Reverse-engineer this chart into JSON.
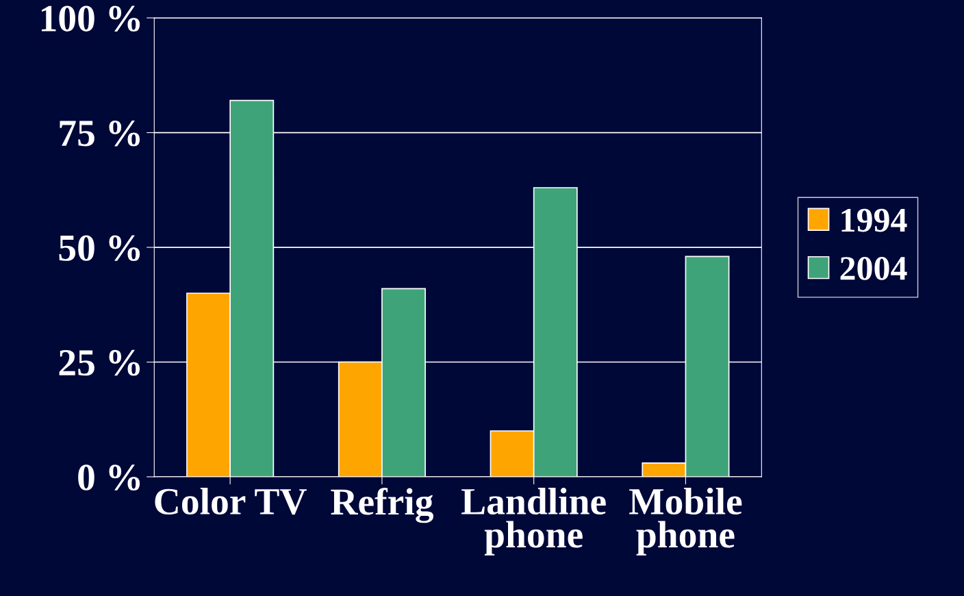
{
  "chart_data": {
    "type": "bar",
    "categories": [
      "Color TV",
      "Refrig",
      "Landline\nphone",
      "Mobile\nphone"
    ],
    "series": [
      {
        "name": "1994",
        "color": "#ffa500",
        "values": [
          40,
          25,
          10,
          3
        ]
      },
      {
        "name": "2004",
        "color": "#3fa37a",
        "values": [
          82,
          41,
          63,
          48
        ]
      }
    ],
    "ylim": [
      0,
      100
    ],
    "yticks": [
      {
        "value": 0,
        "label": "0 %"
      },
      {
        "value": 25,
        "label": "25 %"
      },
      {
        "value": 50,
        "label": "50 %"
      },
      {
        "value": 75,
        "label": "75 %"
      },
      {
        "value": 100,
        "label": "100 %"
      }
    ],
    "grid": "y",
    "legend": "right"
  }
}
